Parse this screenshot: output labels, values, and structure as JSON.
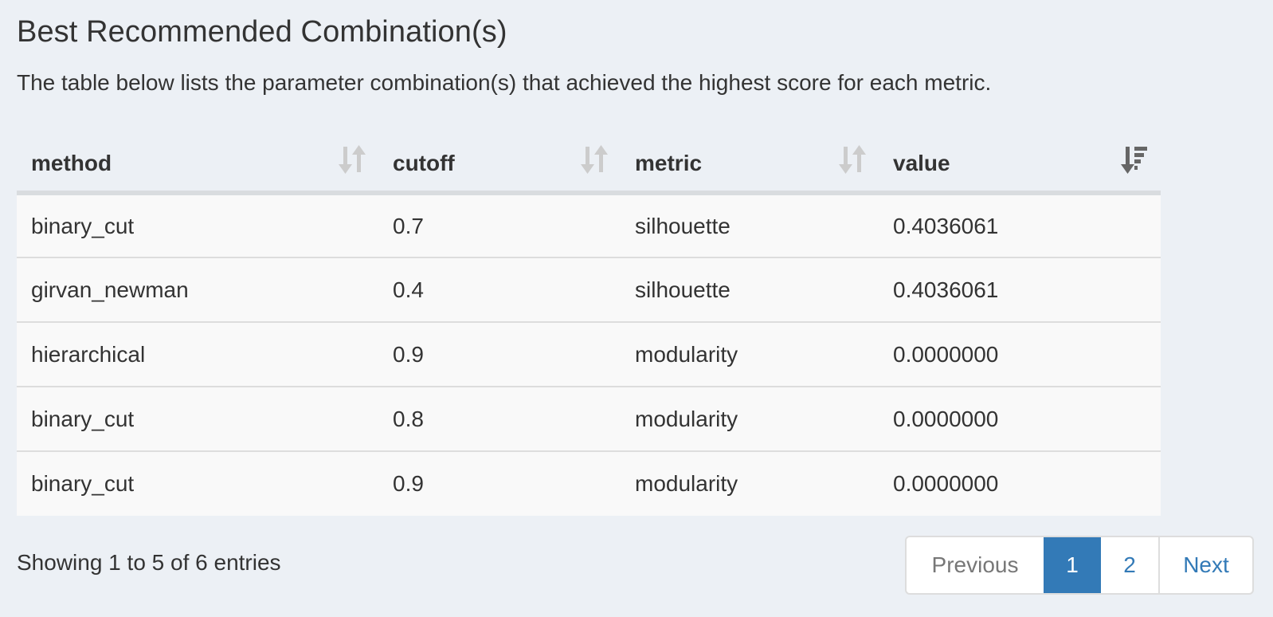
{
  "header": {
    "title": "Best Recommended Combination(s)",
    "description": "The table below lists the parameter combination(s) that achieved the highest score for each metric."
  },
  "table": {
    "columns": [
      {
        "label": "method",
        "sort": "unsorted"
      },
      {
        "label": "cutoff",
        "sort": "unsorted"
      },
      {
        "label": "metric",
        "sort": "unsorted"
      },
      {
        "label": "value",
        "sort": "descending"
      }
    ],
    "rows": [
      [
        "binary_cut",
        "0.7",
        "silhouette",
        "0.4036061"
      ],
      [
        "girvan_newman",
        "0.4",
        "silhouette",
        "0.4036061"
      ],
      [
        "hierarchical",
        "0.9",
        "modularity",
        "0.0000000"
      ],
      [
        "binary_cut",
        "0.8",
        "modularity",
        "0.0000000"
      ],
      [
        "binary_cut",
        "0.9",
        "modularity",
        "0.0000000"
      ]
    ]
  },
  "footer": {
    "info": "Showing 1 to 5 of 6 entries"
  },
  "pagination": {
    "previous": "Previous",
    "pages": [
      "1",
      "2"
    ],
    "current_page": "1",
    "next": "Next"
  },
  "colors": {
    "background": "#ecf0f5",
    "row_background": "#f9f9f9",
    "accent": "#337ab7",
    "text": "#333333",
    "disabled_text": "#777777",
    "sort_icon": "#cccccc",
    "sort_icon_active": "#666666"
  },
  "icons": {
    "unsorted": "sort-both-icon",
    "descending": "sort-descending-icon"
  }
}
